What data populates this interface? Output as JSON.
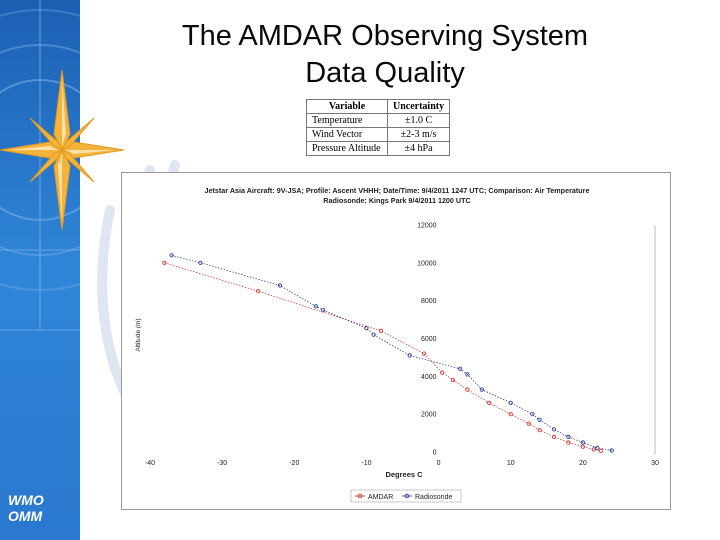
{
  "slide": {
    "title_line1": "The AMDAR Observing System",
    "title_line2": "Data Quality",
    "logo_line1": "WMO",
    "logo_line2": "OMM",
    "colors": {
      "sidebar_top": "#1e6ec8",
      "sidebar_bottom": "#2a7fd6",
      "star": "#f3b33d",
      "watermark": "#d4deec"
    }
  },
  "uncertainty_table": {
    "headers": [
      "Variable",
      "Uncertainty"
    ],
    "rows": [
      [
        "Temperature",
        "±1.0 C"
      ],
      [
        "Wind Vector",
        "±2-3 m/s"
      ],
      [
        "Pressure Altitude",
        "±4 hPa"
      ]
    ]
  },
  "chart_data": {
    "type": "scatter",
    "title": "Jetstar Asia Aircraft: 9V-JSA; Profile: Ascent VHHH; Date/Time: 9/4/2011 1247 UTC; Comparison: Air Temperature",
    "subtitle": "Radiosonde: Kings Park 9/4/2011 1200 UTC",
    "xlabel": "Degrees C",
    "ylabel": "Altitude (m)",
    "xlim": [
      -40,
      30
    ],
    "ylim": [
      0,
      12000
    ],
    "x_ticks": [
      "-40",
      "-30",
      "-20",
      "-10",
      "0",
      "10",
      "20",
      "30"
    ],
    "y_ticks": [
      "0",
      "2000",
      "4000",
      "6000",
      "8000",
      "10000",
      "12000"
    ],
    "legend_position": "bottom",
    "grid": false,
    "series": [
      {
        "name": "AMDAR",
        "color": "#d62020",
        "marker": "circle",
        "points": [
          [
            -38,
            10000
          ],
          [
            -25,
            8500
          ],
          [
            -8,
            6400
          ],
          [
            -2,
            5200
          ],
          [
            0.5,
            4200
          ],
          [
            2,
            3800
          ],
          [
            4,
            3300
          ],
          [
            7,
            2600
          ],
          [
            10,
            2000
          ],
          [
            12.5,
            1500
          ],
          [
            14,
            1150
          ],
          [
            16,
            800
          ],
          [
            18,
            500
          ],
          [
            20,
            280
          ],
          [
            21.5,
            140
          ],
          [
            22.5,
            60
          ]
        ]
      },
      {
        "name": "Radiosonde",
        "color": "#1c2e8a",
        "marker": "circle",
        "points": [
          [
            -37,
            10400
          ],
          [
            -33,
            10000
          ],
          [
            -22,
            8800
          ],
          [
            -17,
            7700
          ],
          [
            -16,
            7500
          ],
          [
            -10,
            6550
          ],
          [
            -9,
            6200
          ],
          [
            -4,
            5100
          ],
          [
            3,
            4400
          ],
          [
            4,
            4100
          ],
          [
            6,
            3300
          ],
          [
            10,
            2600
          ],
          [
            13,
            2000
          ],
          [
            14,
            1700
          ],
          [
            16,
            1200
          ],
          [
            18,
            800
          ],
          [
            20,
            500
          ],
          [
            22,
            220
          ],
          [
            24,
            80
          ]
        ]
      }
    ]
  }
}
